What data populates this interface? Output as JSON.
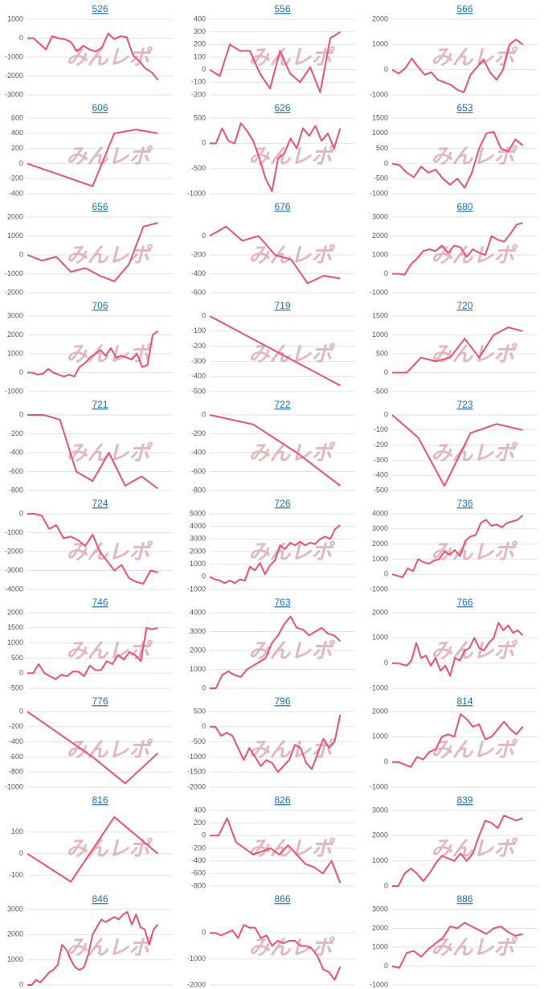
{
  "watermark": "みんレポ",
  "chart_data": [
    {
      "type": "line",
      "title": "526",
      "color": "#f0506e",
      "ylim": [
        -3000,
        1000
      ],
      "yticks": [
        1000,
        0,
        -1000,
        -2000,
        -3000
      ],
      "values": [
        0,
        0,
        -300,
        -600,
        100,
        0,
        -50,
        -200,
        -700,
        -400,
        -600,
        -700,
        -500,
        250,
        -50,
        100,
        50,
        -900,
        -1200,
        -1600,
        -1800,
        -2200
      ]
    },
    {
      "type": "line",
      "title": "556",
      "color": "#f0506e",
      "ylim": [
        -200,
        400
      ],
      "yticks": [
        400,
        300,
        200,
        100,
        0,
        -100,
        -200
      ],
      "values": [
        0,
        -50,
        200,
        150,
        150,
        -30,
        -150,
        150,
        -30,
        -100,
        20,
        -180,
        250,
        300
      ]
    },
    {
      "type": "line",
      "title": "566",
      "color": "#f0506e",
      "ylim": [
        -1000,
        2000
      ],
      "yticks": [
        2000,
        1000,
        0,
        -1000
      ],
      "values": [
        0,
        -150,
        50,
        450,
        100,
        -200,
        -100,
        -400,
        -500,
        -600,
        -800,
        -900,
        -200,
        100,
        400,
        -100,
        -400,
        0,
        1000,
        1200,
        1000
      ]
    },
    {
      "type": "line",
      "title": "606",
      "color": "#f0506e",
      "ylim": [
        -400,
        600
      ],
      "yticks": [
        600,
        400,
        200,
        0,
        -200,
        -400
      ],
      "values": [
        0,
        -100,
        -200,
        -300,
        400,
        450,
        400
      ]
    },
    {
      "type": "line",
      "title": "626",
      "color": "#f0506e",
      "ylim": [
        -1000,
        500
      ],
      "yticks": [
        500,
        0,
        -500,
        -1000
      ],
      "values": [
        0,
        0,
        300,
        50,
        0,
        400,
        250,
        50,
        -300,
        -700,
        -950,
        -300,
        -200,
        100,
        -100,
        300,
        150,
        350,
        50,
        200,
        -100,
        300
      ]
    },
    {
      "type": "line",
      "title": "653",
      "color": "#f0506e",
      "ylim": [
        -1000,
        1500
      ],
      "yticks": [
        1500,
        1000,
        500,
        0,
        -500,
        -1000
      ],
      "values": [
        0,
        -50,
        -300,
        -450,
        -100,
        -300,
        -200,
        -500,
        -700,
        -500,
        -800,
        -300,
        500,
        1000,
        1050,
        500,
        400,
        800,
        600
      ]
    },
    {
      "type": "line",
      "title": "656",
      "color": "#f0506e",
      "ylim": [
        -2000,
        2000
      ],
      "yticks": [
        2000,
        1000,
        0,
        -1000,
        -2000
      ],
      "values": [
        0,
        -300,
        -100,
        -900,
        -700,
        -1100,
        -1400,
        -500,
        1500,
        1700
      ]
    },
    {
      "type": "line",
      "title": "676",
      "color": "#f0506e",
      "ylim": [
        -600,
        200
      ],
      "yticks": [
        0,
        -200,
        -400,
        -600
      ],
      "values": [
        0,
        100,
        -50,
        0,
        -200,
        -250,
        -500,
        -420,
        -450
      ]
    },
    {
      "type": "line",
      "title": "680",
      "color": "#f0506e",
      "ylim": [
        -1000,
        3000
      ],
      "yticks": [
        3000,
        2000,
        1000,
        0,
        -1000
      ],
      "values": [
        0,
        0,
        -50,
        500,
        800,
        1200,
        1300,
        1200,
        1500,
        1100,
        1500,
        1400,
        900,
        1300,
        1100,
        1000,
        2000,
        1800,
        1700,
        2100,
        2600,
        2700
      ]
    },
    {
      "type": "line",
      "title": "706",
      "color": "#f0506e",
      "ylim": [
        -1000,
        3000
      ],
      "yticks": [
        3000,
        2000,
        1000,
        0,
        -1000
      ],
      "values": [
        0,
        0,
        -100,
        -50,
        200,
        0,
        -100,
        -200,
        -100,
        -200,
        300,
        500,
        800,
        1000,
        1200,
        900,
        1300,
        800,
        900,
        800,
        700,
        1000,
        300,
        400,
        2000,
        2200
      ]
    },
    {
      "type": "line",
      "title": "719",
      "color": "#f0506e",
      "ylim": [
        -500,
        0
      ],
      "yticks": [
        0,
        -100,
        -200,
        -300,
        -400,
        -500
      ],
      "values": [
        0,
        -460
      ]
    },
    {
      "type": "line",
      "title": "720",
      "color": "#f0506e",
      "ylim": [
        -500,
        1500
      ],
      "yticks": [
        1500,
        1000,
        500,
        0,
        -500
      ],
      "values": [
        0,
        0,
        400,
        300,
        400,
        900,
        400,
        1000,
        1200,
        1100
      ]
    },
    {
      "type": "line",
      "title": "721",
      "color": "#f0506e",
      "ylim": [
        -800,
        0
      ],
      "yticks": [
        0,
        -200,
        -400,
        -600,
        -800
      ],
      "values": [
        0,
        0,
        -50,
        -600,
        -700,
        -400,
        -750,
        -650,
        -780
      ]
    },
    {
      "type": "line",
      "title": "722",
      "color": "#f0506e",
      "ylim": [
        -800,
        0
      ],
      "yticks": [
        0,
        -200,
        -400,
        -600,
        -800
      ],
      "values": [
        0,
        -100,
        -400,
        -750
      ]
    },
    {
      "type": "line",
      "title": "723",
      "color": "#f0506e",
      "ylim": [
        -500,
        0
      ],
      "yticks": [
        0,
        -100,
        -200,
        -300,
        -400,
        -500
      ],
      "values": [
        0,
        -150,
        -470,
        -120,
        -60,
        -100
      ]
    },
    {
      "type": "line",
      "title": "724",
      "color": "#f0506e",
      "ylim": [
        -4000,
        0
      ],
      "yticks": [
        0,
        -1000,
        -2000,
        -3000,
        -4000
      ],
      "values": [
        0,
        0,
        -100,
        -800,
        -600,
        -1300,
        -1200,
        -1400,
        -1700,
        -1100,
        -2000,
        -2500,
        -3000,
        -2700,
        -3400,
        -3600,
        -3700,
        -3000,
        -3100
      ]
    },
    {
      "type": "line",
      "title": "726",
      "color": "#f0506e",
      "ylim": [
        -1000,
        5000
      ],
      "yticks": [
        5000,
        4000,
        3000,
        2000,
        1000,
        0,
        -1000
      ],
      "values": [
        0,
        -200,
        -300,
        -500,
        -300,
        -500,
        -200,
        -300,
        800,
        500,
        1100,
        200,
        900,
        1300,
        2500,
        2200,
        2700,
        2500,
        2800,
        2500,
        2700,
        2600,
        3000,
        3200,
        3000,
        3800,
        4100
      ]
    },
    {
      "type": "line",
      "title": "736",
      "color": "#f0506e",
      "ylim": [
        -1000,
        4000
      ],
      "yticks": [
        4000,
        3000,
        2000,
        1000,
        0,
        -1000
      ],
      "values": [
        0,
        -100,
        -200,
        400,
        200,
        1000,
        800,
        700,
        900,
        1000,
        1500,
        1300,
        1600,
        1200,
        2200,
        2500,
        2600,
        3400,
        3600,
        3200,
        3300,
        3100,
        3400,
        3500,
        3600,
        3900
      ]
    },
    {
      "type": "line",
      "title": "746",
      "color": "#f0506e",
      "ylim": [
        -500,
        2000
      ],
      "yticks": [
        2000,
        1500,
        1000,
        500,
        0,
        -500
      ],
      "values": [
        0,
        0,
        300,
        0,
        -100,
        -200,
        -50,
        -100,
        50,
        50,
        -100,
        250,
        100,
        100,
        400,
        300,
        600,
        450,
        700,
        600,
        400,
        1500,
        1450,
        1500
      ]
    },
    {
      "type": "line",
      "title": "763",
      "color": "#f0506e",
      "ylim": [
        0,
        4000
      ],
      "yticks": [
        4000,
        3000,
        2000,
        1000,
        0
      ],
      "values": [
        0,
        0,
        700,
        900,
        700,
        600,
        1000,
        1200,
        1400,
        1600,
        2400,
        2800,
        3400,
        3800,
        3200,
        3100,
        2800,
        3000,
        3200,
        2900,
        2800,
        2500
      ]
    },
    {
      "type": "line",
      "title": "766",
      "color": "#f0506e",
      "ylim": [
        -1000,
        2000
      ],
      "yticks": [
        2000,
        1000,
        0,
        -1000
      ],
      "values": [
        0,
        0,
        -50,
        -100,
        100,
        800,
        200,
        300,
        -100,
        200,
        -300,
        -100,
        -500,
        200,
        100,
        500,
        600,
        1000,
        600,
        500,
        800,
        1000,
        1600,
        1300,
        1500,
        1200,
        1300,
        1100
      ]
    },
    {
      "type": "line",
      "title": "776",
      "color": "#f0506e",
      "ylim": [
        -1000,
        0
      ],
      "yticks": [
        0,
        -200,
        -400,
        -600,
        -800,
        -1000
      ],
      "values": [
        0,
        -300,
        -600,
        -950,
        -550
      ]
    },
    {
      "type": "line",
      "title": "796",
      "color": "#f0506e",
      "ylim": [
        -2000,
        500
      ],
      "yticks": [
        500,
        0,
        -500,
        -1000,
        -1500,
        -2000
      ],
      "values": [
        0,
        0,
        -300,
        -200,
        -300,
        -700,
        -1100,
        -700,
        -1000,
        -1300,
        -1100,
        -1200,
        -1500,
        -1300,
        -1100,
        -600,
        -700,
        -1200,
        -1400,
        -900,
        -400,
        -700,
        -500,
        400
      ]
    },
    {
      "type": "line",
      "title": "814",
      "color": "#f0506e",
      "ylim": [
        -1000,
        2000
      ],
      "yticks": [
        2000,
        1000,
        0,
        -1000
      ],
      "values": [
        0,
        0,
        -100,
        -200,
        200,
        100,
        400,
        500,
        1000,
        1100,
        1000,
        1900,
        1700,
        1400,
        1500,
        900,
        1000,
        1300,
        1600,
        1300,
        1100,
        1400
      ]
    },
    {
      "type": "line",
      "title": "816",
      "color": "#f0506e",
      "ylim": [
        -150,
        200
      ],
      "yticks": [
        100,
        0,
        -100
      ],
      "values": [
        0,
        -130,
        170,
        0
      ]
    },
    {
      "type": "line",
      "title": "826",
      "color": "#f0506e",
      "ylim": [
        -800,
        400
      ],
      "yticks": [
        400,
        200,
        0,
        -200,
        -400,
        -600,
        -800
      ],
      "values": [
        0,
        0,
        280,
        -100,
        -200,
        -300,
        -250,
        -200,
        -300,
        -150,
        -300,
        -450,
        -500,
        -600,
        -400,
        -750
      ]
    },
    {
      "type": "line",
      "title": "839",
      "color": "#f0506e",
      "ylim": [
        0,
        3000
      ],
      "yticks": [
        3000,
        2000,
        1000,
        0
      ],
      "values": [
        0,
        0,
        500,
        700,
        500,
        200,
        500,
        900,
        1200,
        1100,
        1000,
        1300,
        1000,
        1300,
        2000,
        2600,
        2500,
        2300,
        2800,
        2700,
        2600,
        2700
      ]
    },
    {
      "type": "line",
      "title": "846",
      "color": "#f0506e",
      "ylim": [
        0,
        3000
      ],
      "yticks": [
        3000,
        2000,
        1000,
        0
      ],
      "values": [
        0,
        0,
        200,
        100,
        300,
        500,
        600,
        800,
        1600,
        1400,
        1000,
        700,
        600,
        700,
        1200,
        2000,
        2300,
        2600,
        2500,
        2600,
        2700,
        2600,
        2800,
        2900,
        2400,
        2800,
        2300,
        2200,
        1600,
        2200,
        2400
      ]
    },
    {
      "type": "line",
      "title": "866",
      "color": "#f0506e",
      "ylim": [
        -2000,
        900
      ],
      "yticks": [
        0,
        -1000,
        -2000
      ],
      "values": [
        0,
        0,
        -100,
        0,
        100,
        -200,
        300,
        200,
        200,
        -200,
        -100,
        -500,
        -300,
        -400,
        -300,
        -300,
        -500,
        -500,
        -600,
        -900,
        -1400,
        -1500,
        -1800,
        -1300
      ]
    },
    {
      "type": "line",
      "title": "886",
      "color": "#f0506e",
      "ylim": [
        -1000,
        3000
      ],
      "yticks": [
        3000,
        2000,
        1000,
        0,
        -1000
      ],
      "values": [
        0,
        -100,
        700,
        800,
        500,
        900,
        1200,
        1500,
        2100,
        2000,
        2300,
        2100,
        1900,
        1700,
        2000,
        2100,
        1800,
        1600,
        1700
      ]
    }
  ]
}
